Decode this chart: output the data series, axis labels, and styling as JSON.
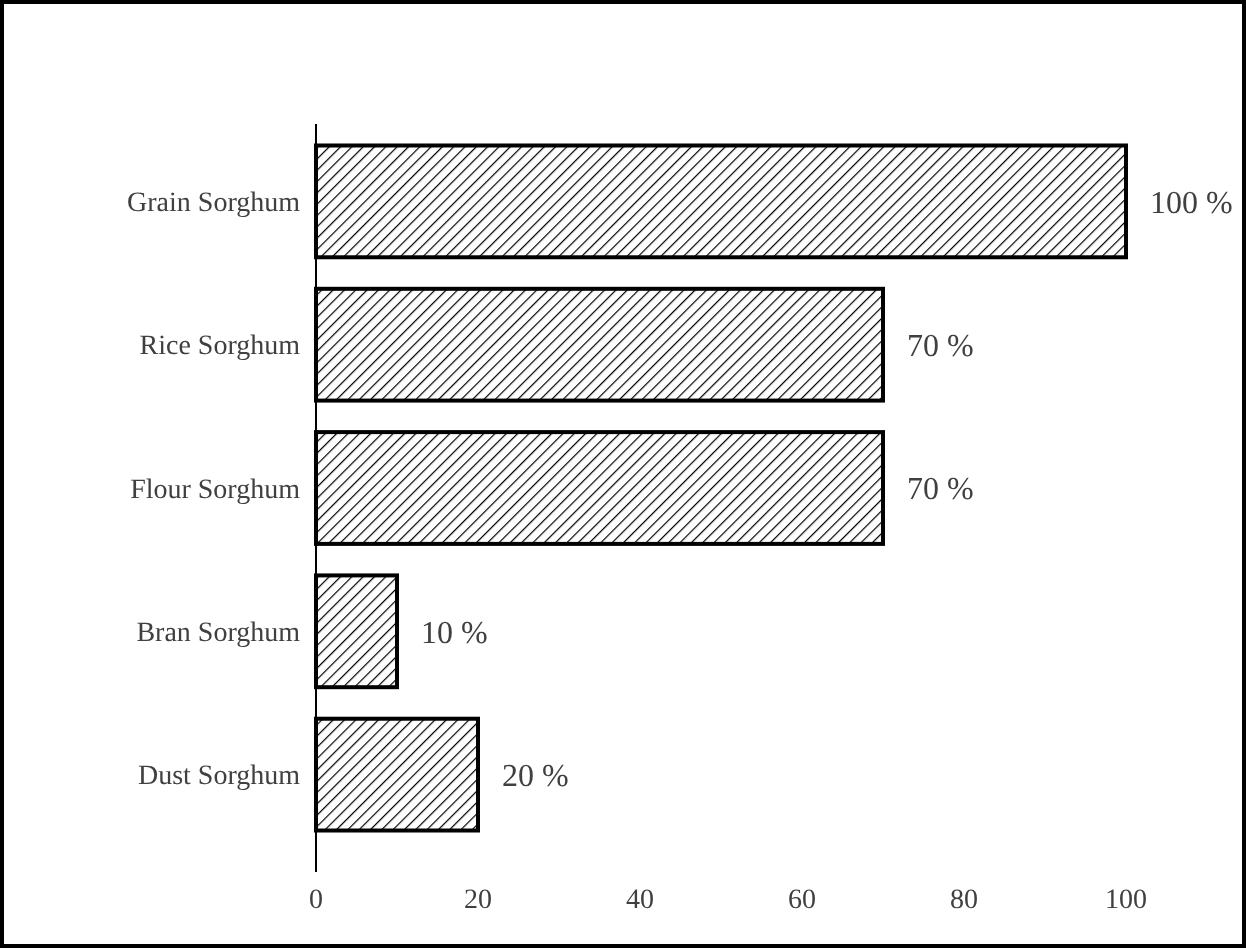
{
  "chart_data": {
    "type": "bar",
    "orientation": "horizontal",
    "categories": [
      "Grain Sorghum",
      "Rice Sorghum",
      "Flour Sorghum",
      "Bran Sorghum",
      "Dust Sorghum"
    ],
    "values": [
      100,
      70,
      70,
      10,
      20
    ],
    "value_labels": [
      "100 %",
      "70 %",
      "70 %",
      "10 %",
      "20 %"
    ],
    "color": "#000000",
    "xlim": [
      0,
      100
    ],
    "xticks": [
      0,
      20,
      40,
      60,
      80,
      100
    ]
  }
}
